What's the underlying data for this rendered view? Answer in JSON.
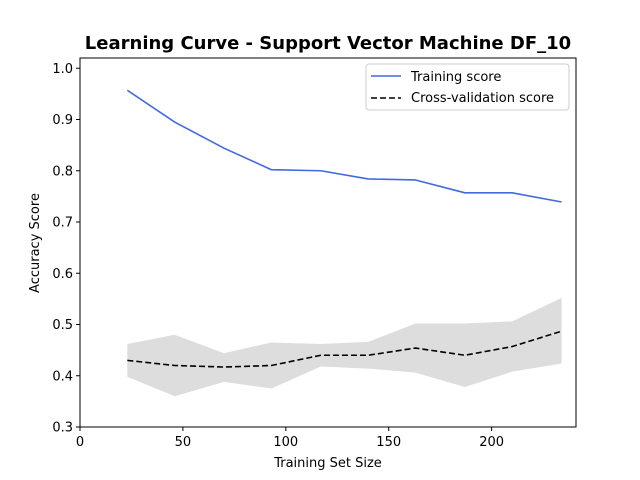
{
  "chart_data": {
    "type": "line",
    "title": "Learning Curve - Support Vector Machine DF_10",
    "xlabel": "Training Set Size",
    "ylabel": "Accuracy Score",
    "xlim": [
      0,
      241
    ],
    "ylim": [
      0.3,
      1.02
    ],
    "xticks": [
      0,
      50,
      100,
      150,
      200
    ],
    "yticks": [
      0.3,
      0.4,
      0.5,
      0.6,
      0.7,
      0.8,
      0.9,
      1.0
    ],
    "xtick_labels": [
      "0",
      "50",
      "100",
      "150",
      "200"
    ],
    "ytick_labels": [
      "0.3",
      "0.4",
      "0.5",
      "0.6",
      "0.7",
      "0.8",
      "0.9",
      "1.0"
    ],
    "legend_position": "top-right",
    "x": [
      23,
      46,
      70,
      93,
      117,
      140,
      163,
      187,
      210,
      234
    ],
    "series": [
      {
        "name": "Training score",
        "color": "#4169e1",
        "style": "solid",
        "values": [
          0.957,
          0.895,
          0.844,
          0.802,
          0.8,
          0.784,
          0.782,
          0.757,
          0.757,
          0.739
        ]
      },
      {
        "name": "Cross-validation score",
        "color": "#000000",
        "style": "dashed",
        "values": [
          0.43,
          0.42,
          0.417,
          0.42,
          0.44,
          0.44,
          0.454,
          0.44,
          0.457,
          0.487
        ],
        "band_lower": [
          0.398,
          0.36,
          0.388,
          0.375,
          0.418,
          0.414,
          0.406,
          0.378,
          0.408,
          0.424
        ],
        "band_upper": [
          0.462,
          0.48,
          0.444,
          0.465,
          0.462,
          0.466,
          0.502,
          0.502,
          0.506,
          0.552
        ],
        "band_color": "#dddddd"
      }
    ]
  }
}
